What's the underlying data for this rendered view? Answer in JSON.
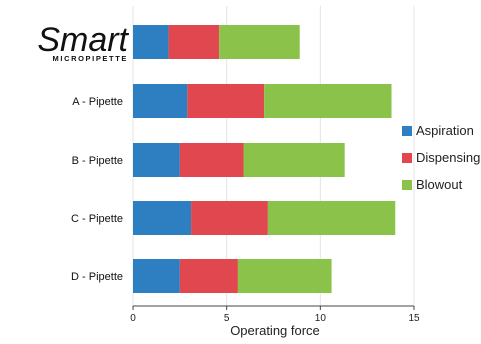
{
  "chart_data": {
    "type": "bar",
    "orientation": "horizontal",
    "stacked": true,
    "categories": [
      "",
      "A - Pipette",
      "B - Pipette",
      "C - Pipette",
      "D - Pipette"
    ],
    "category_logo": {
      "text": "Smart",
      "subtext": "MICROPIPETTE"
    },
    "series": [
      {
        "name": "Aspiration",
        "color": "#2e7fc1",
        "values": [
          1.9,
          2.9,
          2.5,
          3.1,
          2.5
        ]
      },
      {
        "name": "Dispensing",
        "color": "#e0474f",
        "values": [
          2.7,
          4.1,
          3.4,
          4.1,
          3.1
        ]
      },
      {
        "name": "Blowout",
        "color": "#8bc34a",
        "values": [
          4.3,
          6.8,
          5.4,
          6.8,
          5.0
        ]
      }
    ],
    "xlabel": "Operating force",
    "xlim": [
      0,
      15
    ],
    "xticks": [
      0,
      5,
      10,
      15
    ],
    "grid": "vertical",
    "legend_position": "right"
  }
}
